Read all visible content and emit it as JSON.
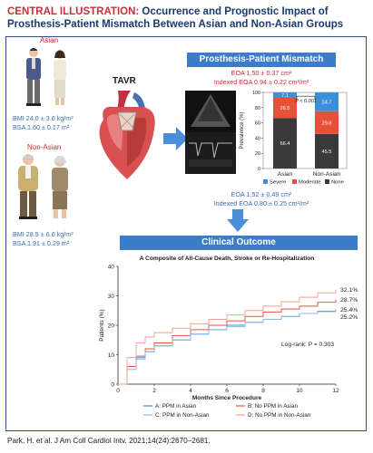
{
  "header": {
    "lead": "CENTRAL ILLUSTRATION:",
    "rest": " Occurrence and Prognostic Impact of Prosthesis-Patient Mismatch Between Asian and Non-Asian Groups"
  },
  "asian": {
    "label": "Asian",
    "bmi": "BMI 24.0 ± 3.6 kg/m²",
    "bsa": "BSA 1.60 ± 0.17 m²"
  },
  "non_asian": {
    "label": "Non-Asian",
    "bmi": "BMI 28.5 ± 6.6 kg/m²",
    "bsa": "BSA 1.91 ± 0.29 m²"
  },
  "tavr_label": "TAVR",
  "ppm": {
    "title": "Prosthesis-Patient Mismatch",
    "eoa_asian": "EOA 1.50 ± 0.37 cm²",
    "ieoa_asian": "Indexed EOA 0.94 ± 0.22 cm²/m²",
    "eoa_non_asian": "EOA 1.52 ± 0.49 cm²",
    "ieoa_non_asian": "Indexed EOA 0.80 ± 0.25 cm²/m²"
  },
  "outcome_title": "Clinical Outcome",
  "citation": "Park, H. et al. J Am Coll Cardiol Intv. 2021;14(24):2670–2681.",
  "chart_data": [
    {
      "type": "bar",
      "ylabel": "Prevalence (%)",
      "categories": [
        "Asian",
        "Non-Asian"
      ],
      "ylim": [
        0,
        100
      ],
      "yticks": [
        "0",
        "20",
        "40",
        "60",
        "80",
        "100"
      ],
      "series": [
        {
          "name": "None",
          "values": [
            66.4,
            45.5
          ],
          "color": "#3a3a3a"
        },
        {
          "name": "Moderate",
          "values": [
            26.5,
            29.8
          ],
          "color": "#e8503a"
        },
        {
          "name": "Severe",
          "values": [
            7.1,
            24.7
          ],
          "color": "#3d8fd9"
        }
      ],
      "value_labels": [
        [
          "66.4",
          "26.5",
          "7.1"
        ],
        [
          "45.5",
          "29.8",
          "24.7"
        ]
      ],
      "annotation": "P < 0.001",
      "legend_labels": [
        "Severe",
        "Moderate",
        "None"
      ]
    },
    {
      "type": "line",
      "title": "A Composite of All-Cause Death, Stroke or Re-Hospitalization",
      "xlabel": "Months Since Procedure",
      "ylabel": "Patients (%)",
      "xlim": [
        0,
        12
      ],
      "ylim": [
        0,
        40
      ],
      "xticks": [
        "0",
        "2",
        "4",
        "6",
        "8",
        "10",
        "12"
      ],
      "yticks": [
        "0",
        "10",
        "20",
        "30",
        "40"
      ],
      "annotation": "Log-rank: P = 0.303",
      "series": [
        {
          "name": "A: PPM in Asian",
          "color": "#3d8fd9",
          "end_label": "25.4%",
          "x": [
            0,
            0.5,
            1,
            1.5,
            2,
            3,
            4,
            5,
            6,
            7,
            8,
            9,
            10,
            11,
            12
          ],
          "y": [
            0,
            6,
            9,
            11,
            13,
            15,
            17,
            18.5,
            20,
            21,
            22,
            23,
            24,
            24.8,
            25.4
          ]
        },
        {
          "name": "B: No PPM in Asian",
          "color": "#e8503a",
          "end_label": "28.7%",
          "x": [
            0,
            0.5,
            1,
            1.5,
            2,
            3,
            4,
            5,
            6,
            7,
            8,
            9,
            10,
            11,
            12
          ],
          "y": [
            0,
            6,
            9.5,
            12,
            14,
            16.5,
            18.5,
            20,
            21.5,
            23,
            24.5,
            25.5,
            26.5,
            27.8,
            28.7
          ]
        },
        {
          "name": "C: PPM in Non-Asian",
          "color": "#8fb8e0",
          "end_label": "25.2%",
          "x": [
            0,
            0.5,
            1,
            1.5,
            2,
            3,
            4,
            5,
            6,
            7,
            8,
            9,
            10,
            11,
            12
          ],
          "y": [
            0,
            5,
            8.5,
            11,
            13,
            15,
            17,
            18.5,
            19.5,
            21,
            22,
            23,
            24,
            24.6,
            25.2
          ]
        },
        {
          "name": "D: No PPM in Non-Asian",
          "color": "#f0a090",
          "end_label": "32.1%",
          "x": [
            0,
            0.5,
            1,
            1.5,
            2,
            3,
            4,
            5,
            6,
            7,
            8,
            9,
            10,
            11,
            12
          ],
          "y": [
            0,
            9,
            14,
            16,
            17.5,
            19,
            20.5,
            22,
            23.5,
            25,
            26.5,
            28,
            29.5,
            31,
            32.1
          ]
        }
      ]
    }
  ]
}
